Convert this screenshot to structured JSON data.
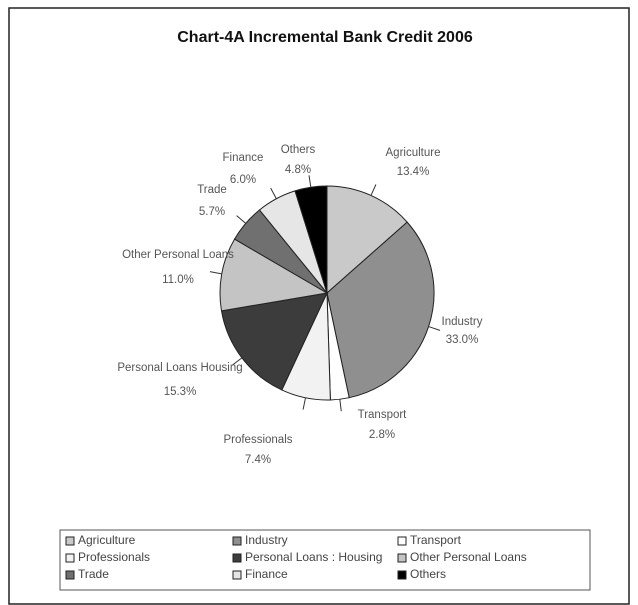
{
  "chart_data": {
    "type": "pie",
    "title": "Chart-4A Incremental Bank Credit 2006",
    "categories": [
      "Agriculture",
      "Industry",
      "Transport",
      "Professionals",
      "Personal Loans : Housing",
      "Other Personal Loans",
      "Trade",
      "Finance",
      "Others"
    ],
    "labels": [
      "Agriculture",
      "Industry",
      "Transport",
      "Professionals",
      "Personal Loans Housing",
      "Other Personal Loans",
      "Trade",
      "Finance",
      "Others"
    ],
    "values": [
      13.4,
      33.0,
      2.8,
      7.4,
      15.3,
      11.0,
      5.7,
      6.0,
      4.8
    ],
    "value_labels": [
      "13.4%",
      "33.0%",
      "2.8%",
      "7.4%",
      "15.3%",
      "11.0%",
      "5.7%",
      "6.0%",
      "4.8%"
    ],
    "colors": [
      "#c9c9c9",
      "#8f8f8f",
      "#ffffff",
      "#f2f2f2",
      "#3c3c3c",
      "#c4c4c4",
      "#707070",
      "#e6e6e6",
      "#000000"
    ],
    "legend": "bottom"
  }
}
